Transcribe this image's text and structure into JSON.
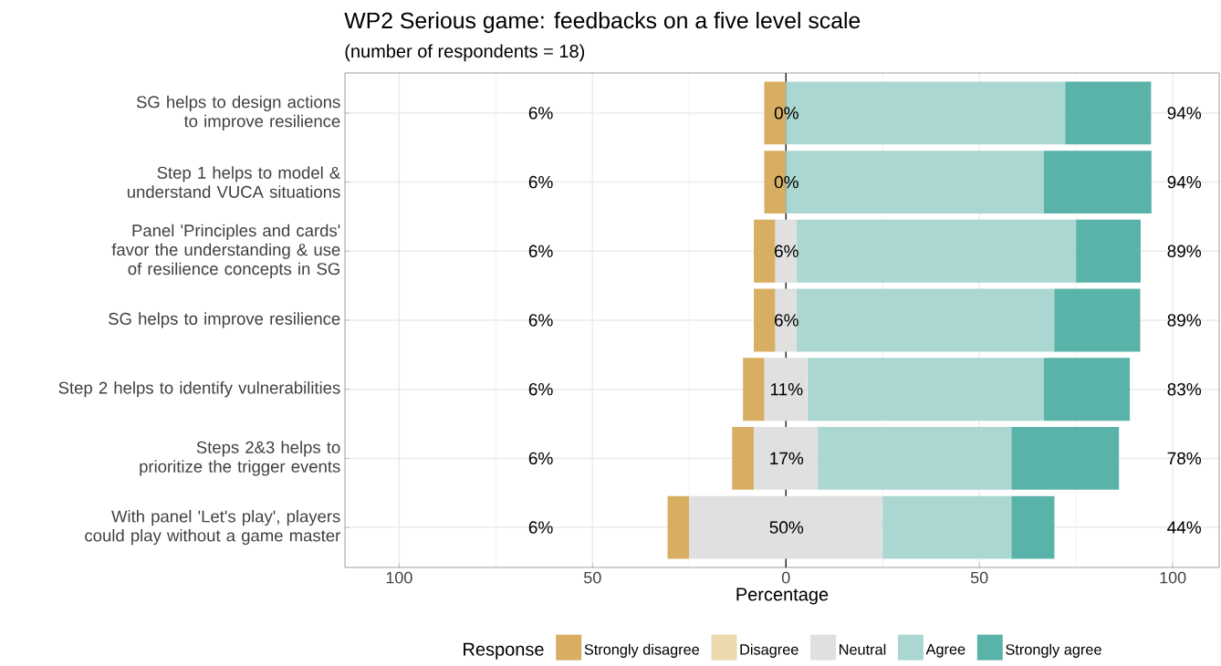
{
  "chart_data": {
    "type": "bar",
    "orientation": "horizontal",
    "title": "WP2 Serious game:  feedbacks on a five level  scale",
    "subtitle": "(number of respondents = 18)",
    "xlabel": "Percentage",
    "legend_title": "Response",
    "legend": "bottom",
    "grid": true,
    "categories": [
      "SG helps to design actions to improve resilience",
      "Step 1 helps to model & understand VUCA situations",
      "Panel 'Principles and cards' favor the understanding & use of resilience concepts in SG",
      "SG helps to improve resilience",
      "Step 2 helps to identify vulnerabilities",
      "Steps 2&3 helps to prioritize the trigger events",
      "With panel 'Let's play', players could play without a game master"
    ],
    "series": [
      {
        "name": "Strongly disagree",
        "color": "#d8ae62",
        "base": [
          -5.6,
          -5.6,
          -8.3,
          -8.3,
          -11.1,
          -13.9,
          -30.6
        ],
        "values": [
          5.6,
          5.6,
          5.6,
          5.6,
          5.6,
          5.6,
          5.6
        ]
      },
      {
        "name": "Disagree",
        "color": "#ecd9ad",
        "values": [
          0,
          0,
          0,
          0,
          0,
          0,
          0
        ]
      },
      {
        "name": "Neutral",
        "color": "#e0e0e0",
        "base": [
          null,
          null,
          -2.8,
          -2.8,
          -5.6,
          -8.3,
          -25
        ],
        "values": [
          0,
          0,
          5.6,
          5.6,
          11.1,
          16.7,
          50
        ]
      },
      {
        "name": "Agree",
        "color": "#abd7d2",
        "base": [
          0,
          0,
          2.8,
          2.8,
          5.6,
          8.3,
          25
        ],
        "values": [
          72.2,
          66.7,
          72.2,
          66.7,
          61.1,
          50,
          33.3
        ]
      },
      {
        "name": "Strongly agree",
        "color": "#5ab3a8",
        "base": [
          72.2,
          66.7,
          75,
          69.4,
          66.7,
          58.3,
          58.3
        ],
        "values": [
          22.2,
          27.8,
          16.7,
          22.2,
          22.2,
          27.8,
          11.1
        ]
      }
    ],
    "xlim": [
      -114,
      112
    ],
    "xticks": [
      {
        "value": -100,
        "label": "100"
      },
      {
        "value": -50,
        "label": "50"
      },
      0,
      50,
      100
    ],
    "ref_lines": [
      {
        "axis": "x",
        "value": 0,
        "color": "#000000"
      }
    ],
    "annotations": [
      "6%",
      "0%",
      "94%",
      "6%",
      "0%",
      "94%",
      "6%",
      "6%",
      "89%",
      "6%",
      "6%",
      "89%",
      "6%",
      "11%",
      "83%",
      "6%",
      "17%",
      "78%",
      "6%",
      "50%",
      "44%"
    ]
  }
}
